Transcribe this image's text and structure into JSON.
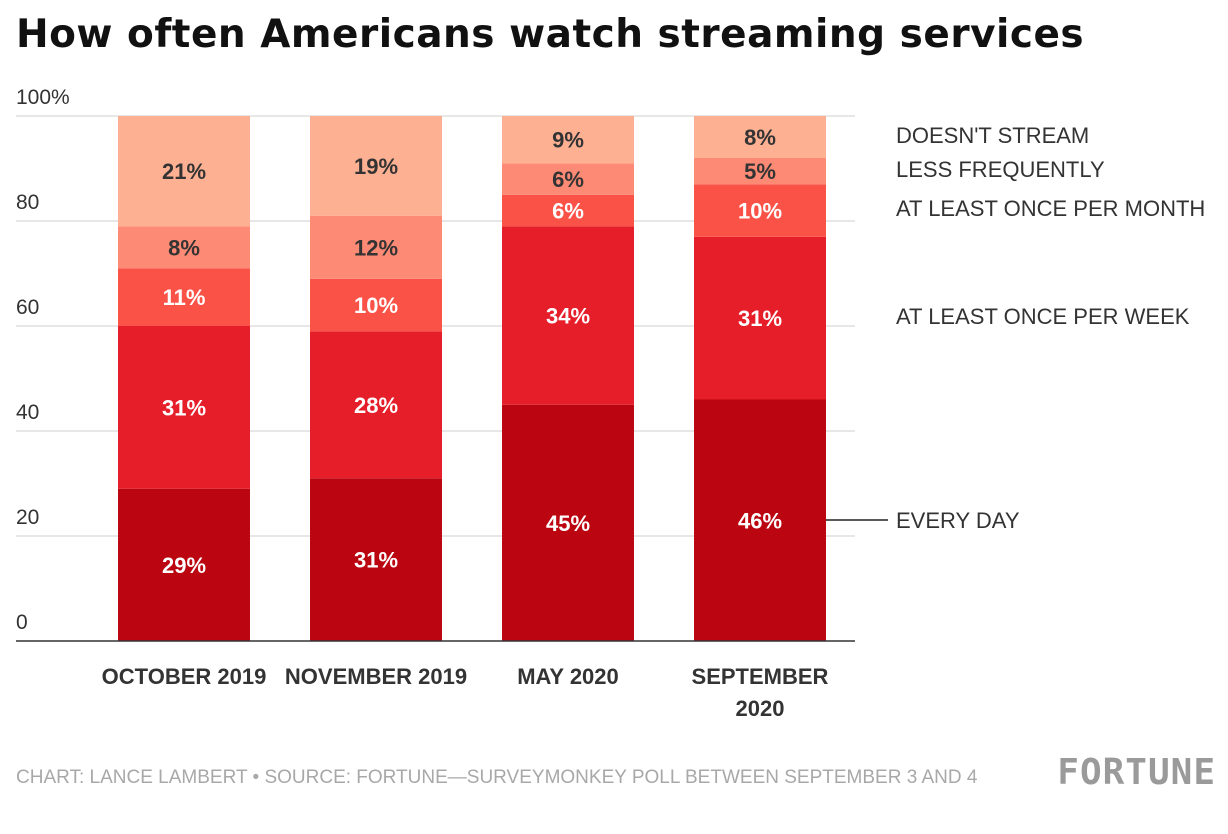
{
  "chart_data": {
    "type": "bar",
    "stacked": true,
    "title": "How often Americans watch streaming services",
    "categories": [
      "OCTOBER 2019",
      "NOVEMBER 2019",
      "MAY 2020",
      "SEPTEMBER 2020"
    ],
    "series": [
      {
        "name": "EVERY DAY",
        "values": [
          29,
          31,
          45,
          46
        ],
        "labels": [
          "29%",
          "31%",
          "45%",
          "46%"
        ],
        "color": "#bb0611"
      },
      {
        "name": "AT LEAST ONCE PER WEEK",
        "values": [
          31,
          28,
          34,
          31
        ],
        "labels": [
          "31%",
          "28%",
          "34%",
          "31%"
        ],
        "color": "#e61e2a"
      },
      {
        "name": "AT LEAST ONCE PER MONTH",
        "values": [
          11,
          10,
          6,
          10
        ],
        "labels": [
          "11%",
          "10%",
          "6%",
          "10%"
        ],
        "color": "#fb5247"
      },
      {
        "name": "LESS FREQUENTLY",
        "values": [
          8,
          12,
          6,
          5
        ],
        "labels": [
          "8%",
          "12%",
          "6%",
          "5%"
        ],
        "color": "#fd8a74"
      },
      {
        "name": "DOESN'T STREAM",
        "values": [
          21,
          19,
          9,
          8
        ],
        "labels": [
          "21%",
          "19%",
          "9%",
          "8%"
        ],
        "color": "#feb093"
      }
    ],
    "yticks": [
      "0",
      "20",
      "40",
      "60",
      "80",
      "100%"
    ],
    "ylim": [
      0,
      100
    ],
    "grid": true,
    "legend_position": "right"
  },
  "footer": {
    "credit": "CHART: LANCE LAMBERT • SOURCE: FORTUNE—SURVEYMONKEY POLL BETWEEN SEPTEMBER 3 AND 4",
    "logo": "FORTUNE"
  }
}
